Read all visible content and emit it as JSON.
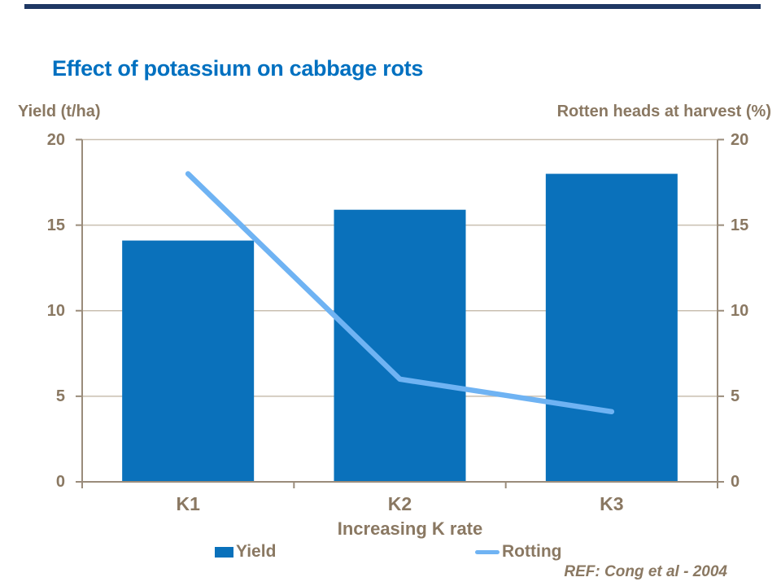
{
  "accent_bar_color": "#1F3864",
  "title": {
    "text": "Effect of potassium on cabbage rots",
    "color": "#0070C0"
  },
  "axis_headers": {
    "left": "Yield (t/ha)",
    "right": "Rotten heads at harvest (%)"
  },
  "footer": {
    "ref": "REF: Cong et al - 2004"
  },
  "colors": {
    "bar": "#0A71BB",
    "line": "#6FB3F3",
    "axis": "#9A8C7B",
    "grid": "#C9BFB0",
    "label": "#8A7862",
    "title": "#0070C0",
    "accent": "#1F3864"
  },
  "chart_data": {
    "type": "bar",
    "subtype": "bar-and-line-dual-axis",
    "title": "Effect of potassium on cabbage rots",
    "categories": [
      "K1",
      "K2",
      "K3"
    ],
    "series": [
      {
        "name": "Yield",
        "type": "bar",
        "axis": "left",
        "values": [
          14.1,
          15.9,
          18
        ],
        "color": "#0A71BB"
      },
      {
        "name": "Rotting",
        "type": "line",
        "axis": "right",
        "values": [
          18,
          6,
          4.1
        ],
        "color": "#6FB3F3"
      }
    ],
    "xlabel": "Increasing K rate",
    "ylabel_left": "Yield (t/ha)",
    "ylabel_right": "Rotten heads at harvest (%)",
    "ylim": [
      0,
      20
    ],
    "yticks": [
      0,
      5,
      10,
      15,
      20
    ],
    "grid": true,
    "legend_position": "bottom"
  }
}
